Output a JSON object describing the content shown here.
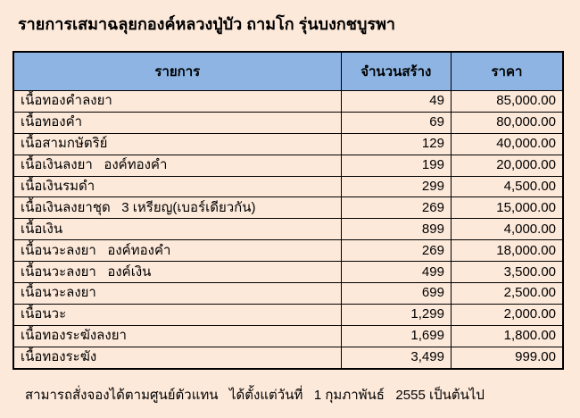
{
  "title": "รายการเสมาฉลุยกองค์หลวงปู่บัว ถามโก รุ่นบงกชบูรพา",
  "table": {
    "headers": [
      "รายการ",
      "จำนวนสร้าง",
      "ราคา"
    ],
    "rows": [
      [
        "เนื้อทองคำลงยา",
        "49",
        "85,000.00"
      ],
      [
        "เนื้อทองคำ",
        "69",
        "80,000.00"
      ],
      [
        "เนื้อสามกษัตริย์",
        "129",
        "40,000.00"
      ],
      [
        "เนื้อเงินลงยา   องค์ทองคำ",
        "199",
        "20,000.00"
      ],
      [
        "เนื้อเงินรมดำ",
        "299",
        "4,500.00"
      ],
      [
        "เนื้อเงินลงยาชุด   3 เหรียญ(เบอร์เดียวกัน)",
        "269",
        "15,000.00"
      ],
      [
        "เนื้อเงิน",
        "899",
        "4,000.00"
      ],
      [
        "เนื้อนวะลงยา   องค์ทองคำ",
        "269",
        "18,000.00"
      ],
      [
        "เนื้อนวะลงยา   องค์เงิน",
        "499",
        "3,500.00"
      ],
      [
        "เนื้อนวะลงยา",
        "699",
        "2,500.00"
      ],
      [
        "เนื้อนวะ",
        "1,299",
        "2,000.00"
      ],
      [
        "เนื้อทองระฆังลงยา",
        "1,699",
        "1,800.00"
      ],
      [
        "เนื้อทองระฆัง",
        "3,499",
        "999.00"
      ]
    ]
  },
  "footer": "สามารถสั่งจองได้ตามศูนย์ตัวแทน   ได้ตั้งแต่วันที่   1 กุมภาพันธ์   2555 เป็นต้นไป",
  "colors": {
    "background": "#fde9da",
    "header": "#8db4e2"
  }
}
